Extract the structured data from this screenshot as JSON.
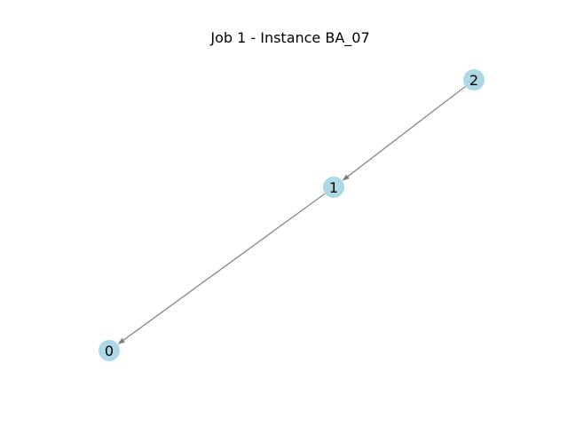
{
  "title": "Job 1 - Instance BA_07",
  "graph": {
    "directed": true,
    "node_color": "#add8e6",
    "edge_color": "#808080",
    "nodes": [
      {
        "id": "0",
        "label": "0"
      },
      {
        "id": "1",
        "label": "1"
      },
      {
        "id": "2",
        "label": "2"
      }
    ],
    "edges": [
      {
        "source": "2",
        "target": "1"
      },
      {
        "source": "1",
        "target": "0"
      }
    ]
  }
}
